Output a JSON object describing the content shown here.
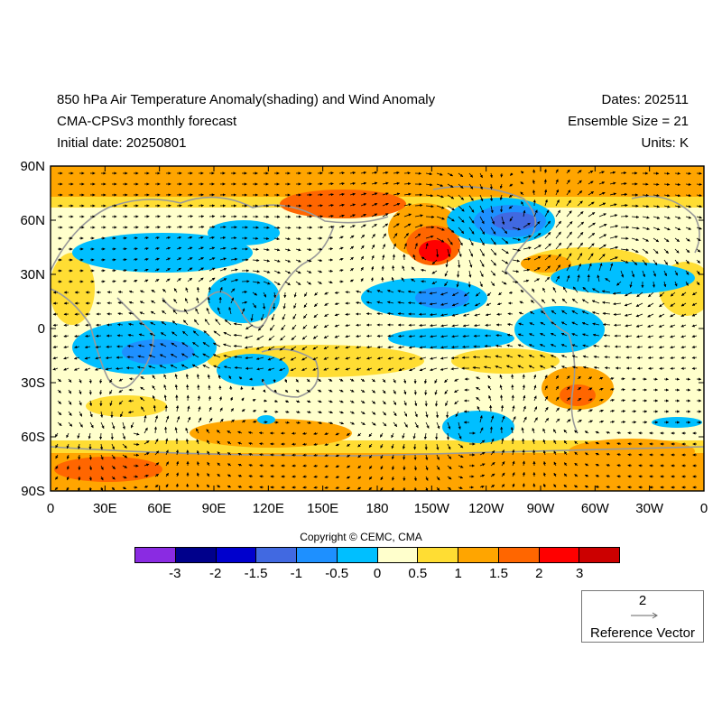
{
  "header": {
    "title": "850 hPa Air Temperature Anomaly(shading) and Wind Anomaly",
    "model": "CMA-CPSv3 monthly forecast",
    "initial_date": "Initial date: 20250801",
    "dates": "Dates: 202511",
    "ensemble": "Ensemble Size = 21",
    "units": "Units: K"
  },
  "axes": {
    "lat_labels": [
      "90N",
      "60N",
      "30N",
      "0",
      "30S",
      "60S",
      "90S"
    ],
    "lon_labels": [
      "0",
      "30E",
      "60E",
      "90E",
      "120E",
      "150E",
      "180",
      "150W",
      "120W",
      "90W",
      "60W",
      "30W",
      "0"
    ]
  },
  "colorbar": {
    "colors": [
      "#8a2be2",
      "#00008b",
      "#0000cd",
      "#4169e1",
      "#1e90ff",
      "#00bfff",
      "#ffffcc",
      "#ffdd33",
      "#ffa500",
      "#ff6600",
      "#ff0000",
      "#cc0000"
    ],
    "labels": [
      "-3",
      "-2",
      "-1.5",
      "-1",
      "-0.5",
      "0",
      "0.5",
      "1",
      "1.5",
      "2",
      "3"
    ]
  },
  "copyright": "Copyright © CEMC, CMA",
  "reference_vector": {
    "magnitude": "2",
    "label": "Reference Vector"
  }
}
